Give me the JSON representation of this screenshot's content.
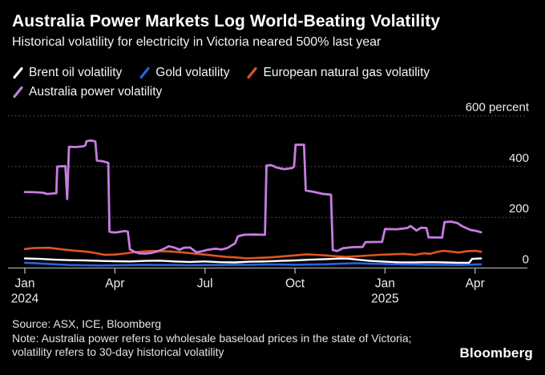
{
  "header": {
    "title": "Australia Power Markets Log World-Beating Volatility",
    "subtitle": "Historical volatility for electricity in Victoria neared 500% last year"
  },
  "footer": {
    "source": "Source: ASX, ICE, Bloomberg",
    "note": "Note: Australia power refers to wholesale baseload prices in the state of Victoria; volatility refers to 30-day historical volatility",
    "logo": "Bloomberg"
  },
  "chart_data": {
    "type": "line",
    "title": "Australia Power Markets Log World-Beating Volatility",
    "subtitle": "Historical volatility for electricity in Victoria neared 500% last year",
    "x_unit": "months since Jan 2024",
    "x_range": [
      0,
      15.3
    ],
    "y_range": [
      0,
      632
    ],
    "ylabel": "percent",
    "grid": "horizontal-dotted",
    "legend_position": "top",
    "background": "#000000",
    "grid_color": "#5f5f5f",
    "axis_color": "#a8a8a8",
    "label_color": "#ececec",
    "y_ticks": [
      {
        "value": 600,
        "label": "600 percent"
      },
      {
        "value": 400,
        "label": "400"
      },
      {
        "value": 200,
        "label": "200"
      },
      {
        "value": 0,
        "label": "0"
      }
    ],
    "x_ticks": [
      {
        "month": 0,
        "label": "Jan",
        "year": "2024"
      },
      {
        "month": 3,
        "label": "Apr"
      },
      {
        "month": 6,
        "label": "Jul"
      },
      {
        "month": 9,
        "label": "Oct"
      },
      {
        "month": 12,
        "label": "Jan",
        "year": "2025"
      },
      {
        "month": 15,
        "label": "Apr"
      }
    ],
    "series": [
      {
        "name": "Brent oil volatility",
        "color": "#ffffff",
        "points": [
          [
            0,
            38
          ],
          [
            0.5,
            36
          ],
          [
            1.0,
            33
          ],
          [
            1.5,
            31
          ],
          [
            2.0,
            30
          ],
          [
            2.5,
            28
          ],
          [
            3.0,
            27
          ],
          [
            3.5,
            26
          ],
          [
            4.0,
            28
          ],
          [
            4.5,
            29
          ],
          [
            5.0,
            26
          ],
          [
            5.5,
            24
          ],
          [
            6.0,
            26
          ],
          [
            6.5,
            23
          ],
          [
            7.0,
            22
          ],
          [
            7.5,
            25
          ],
          [
            8.0,
            26
          ],
          [
            8.5,
            28
          ],
          [
            9.0,
            30
          ],
          [
            9.5,
            33
          ],
          [
            10.0,
            35
          ],
          [
            10.4,
            37
          ],
          [
            10.7,
            38
          ],
          [
            11.0,
            34
          ],
          [
            11.5,
            28
          ],
          [
            12.0,
            25
          ],
          [
            12.5,
            22
          ],
          [
            13.0,
            22
          ],
          [
            13.5,
            23
          ],
          [
            14.0,
            22
          ],
          [
            14.4,
            21
          ],
          [
            14.8,
            21
          ],
          [
            14.9,
            36
          ],
          [
            15.2,
            38
          ]
        ]
      },
      {
        "name": "Gold volatility",
        "color": "#2563e6",
        "points": [
          [
            0,
            21
          ],
          [
            0.5,
            18
          ],
          [
            1.0,
            15
          ],
          [
            1.5,
            12
          ],
          [
            2.0,
            11
          ],
          [
            2.5,
            10
          ],
          [
            3.0,
            11
          ],
          [
            3.5,
            12
          ],
          [
            4.0,
            13
          ],
          [
            4.5,
            12
          ],
          [
            5.0,
            12
          ],
          [
            5.5,
            11
          ],
          [
            6.0,
            12
          ],
          [
            6.5,
            12
          ],
          [
            7.0,
            13
          ],
          [
            7.5,
            13
          ],
          [
            8.0,
            14
          ],
          [
            8.5,
            14
          ],
          [
            9.0,
            13
          ],
          [
            9.5,
            14
          ],
          [
            10.0,
            15
          ],
          [
            10.5,
            17
          ],
          [
            11.0,
            19
          ],
          [
            11.5,
            17
          ],
          [
            12.0,
            16
          ],
          [
            12.5,
            15
          ],
          [
            13.0,
            14
          ],
          [
            13.5,
            13
          ],
          [
            14.0,
            13
          ],
          [
            14.5,
            12
          ],
          [
            15.0,
            14
          ],
          [
            15.2,
            15
          ]
        ]
      },
      {
        "name": "European natural gas volatility",
        "color": "#e05523",
        "points": [
          [
            0,
            75
          ],
          [
            0.3,
            79
          ],
          [
            0.8,
            80
          ],
          [
            1.2,
            74
          ],
          [
            1.7,
            68
          ],
          [
            2.1,
            64
          ],
          [
            2.4,
            58
          ],
          [
            2.65,
            52
          ],
          [
            3.0,
            53
          ],
          [
            3.3,
            57
          ],
          [
            3.6,
            62
          ],
          [
            4.0,
            66
          ],
          [
            4.4,
            67
          ],
          [
            4.9,
            65
          ],
          [
            5.4,
            60
          ],
          [
            5.9,
            54
          ],
          [
            6.3,
            49
          ],
          [
            6.7,
            44
          ],
          [
            7.0,
            42
          ],
          [
            7.4,
            38
          ],
          [
            7.8,
            40
          ],
          [
            8.2,
            42
          ],
          [
            8.6,
            46
          ],
          [
            9.0,
            50
          ],
          [
            9.4,
            54
          ],
          [
            9.7,
            52
          ],
          [
            10.0,
            50
          ],
          [
            10.4,
            46
          ],
          [
            10.7,
            44
          ],
          [
            11.0,
            46
          ],
          [
            11.4,
            49
          ],
          [
            11.8,
            52
          ],
          [
            12.2,
            54
          ],
          [
            12.6,
            56
          ],
          [
            13.0,
            52
          ],
          [
            13.3,
            58
          ],
          [
            13.5,
            56
          ],
          [
            13.75,
            64
          ],
          [
            13.95,
            68
          ],
          [
            14.2,
            65
          ],
          [
            14.45,
            61
          ],
          [
            14.7,
            66
          ],
          [
            15.0,
            68
          ],
          [
            15.2,
            64
          ]
        ]
      },
      {
        "name": "Australia power volatility",
        "color": "#c57de2",
        "points": [
          [
            0,
            300
          ],
          [
            0.35,
            299
          ],
          [
            0.6,
            297
          ],
          [
            0.75,
            292
          ],
          [
            0.95,
            294
          ],
          [
            1.05,
            295
          ],
          [
            1.08,
            400
          ],
          [
            1.2,
            401
          ],
          [
            1.35,
            402
          ],
          [
            1.41,
            272
          ],
          [
            1.47,
            478
          ],
          [
            1.7,
            477
          ],
          [
            1.95,
            480
          ],
          [
            2.02,
            484
          ],
          [
            2.05,
            500
          ],
          [
            2.2,
            503
          ],
          [
            2.35,
            499
          ],
          [
            2.4,
            424
          ],
          [
            2.6,
            421
          ],
          [
            2.78,
            415
          ],
          [
            2.82,
            143
          ],
          [
            3.0,
            140
          ],
          [
            3.35,
            146
          ],
          [
            3.43,
            143
          ],
          [
            3.5,
            74
          ],
          [
            3.65,
            64
          ],
          [
            3.8,
            58
          ],
          [
            4.0,
            57
          ],
          [
            4.2,
            59
          ],
          [
            4.4,
            65
          ],
          [
            4.6,
            74
          ],
          [
            4.8,
            86
          ],
          [
            5.0,
            80
          ],
          [
            5.15,
            72
          ],
          [
            5.3,
            80
          ],
          [
            5.5,
            81
          ],
          [
            5.72,
            62
          ],
          [
            5.9,
            66
          ],
          [
            6.1,
            72
          ],
          [
            6.35,
            76
          ],
          [
            6.55,
            73
          ],
          [
            6.75,
            79
          ],
          [
            6.9,
            90
          ],
          [
            7.0,
            97
          ],
          [
            7.1,
            125
          ],
          [
            7.3,
            131
          ],
          [
            7.6,
            132
          ],
          [
            8.0,
            131
          ],
          [
            8.05,
            404
          ],
          [
            8.2,
            406
          ],
          [
            8.4,
            396
          ],
          [
            8.65,
            390
          ],
          [
            8.9,
            394
          ],
          [
            8.97,
            400
          ],
          [
            9.02,
            486
          ],
          [
            9.3,
            486
          ],
          [
            9.36,
            306
          ],
          [
            9.6,
            301
          ],
          [
            9.9,
            293
          ],
          [
            10.2,
            289
          ],
          [
            10.26,
            71
          ],
          [
            10.4,
            67
          ],
          [
            10.6,
            78
          ],
          [
            10.9,
            82
          ],
          [
            11.25,
            83
          ],
          [
            11.35,
            102
          ],
          [
            11.9,
            103
          ],
          [
            12.0,
            154
          ],
          [
            12.4,
            153
          ],
          [
            12.75,
            158
          ],
          [
            12.85,
            166
          ],
          [
            13.05,
            148
          ],
          [
            13.2,
            159
          ],
          [
            13.38,
            158
          ],
          [
            13.45,
            121
          ],
          [
            13.9,
            120
          ],
          [
            13.98,
            181
          ],
          [
            14.2,
            183
          ],
          [
            14.4,
            178
          ],
          [
            14.6,
            163
          ],
          [
            14.85,
            150
          ],
          [
            15.05,
            146
          ],
          [
            15.2,
            141
          ]
        ]
      }
    ]
  }
}
